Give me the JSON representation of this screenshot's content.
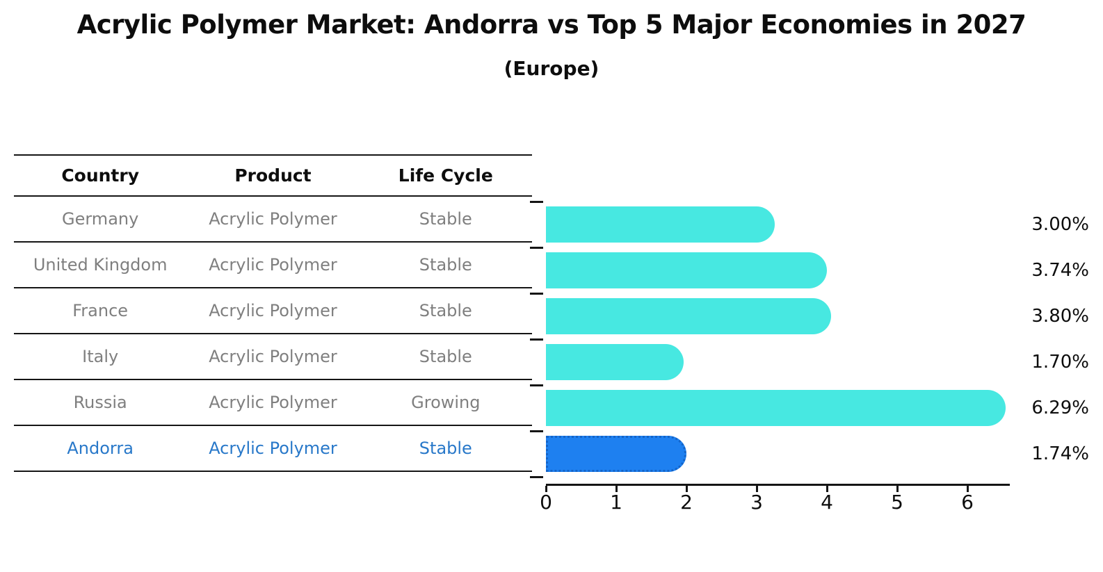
{
  "title": "Acrylic Polymer Market: Andorra vs Top 5 Major Economies in 2027",
  "subtitle": "(Europe)",
  "table": {
    "headers": {
      "country": "Country",
      "product": "Product",
      "life_cycle": "Life Cycle"
    },
    "rows": [
      {
        "country": "Germany",
        "product": "Acrylic Polymer",
        "life_cycle": "Stable"
      },
      {
        "country": "United Kingdom",
        "product": "Acrylic Polymer",
        "life_cycle": "Stable"
      },
      {
        "country": "France",
        "product": "Acrylic Polymer",
        "life_cycle": "Stable"
      },
      {
        "country": "Italy",
        "product": "Acrylic Polymer",
        "life_cycle": "Stable"
      },
      {
        "country": "Russia",
        "product": "Acrylic Polymer",
        "life_cycle": "Growing"
      },
      {
        "country": "Andorra",
        "product": "Acrylic Polymer",
        "life_cycle": "Stable"
      }
    ]
  },
  "chart_data": {
    "type": "bar",
    "orientation": "horizontal",
    "title": "Acrylic Polymer Market: Andorra vs Top 5 Major Economies in 2027",
    "subtitle": "(Europe)",
    "categories": [
      "Germany",
      "United Kingdom",
      "France",
      "Italy",
      "Russia",
      "Andorra"
    ],
    "values": [
      3.0,
      3.74,
      3.8,
      1.7,
      6.29,
      1.74
    ],
    "value_labels": [
      "3.00%",
      "3.74%",
      "3.80%",
      "1.70%",
      "6.29%",
      "1.74%"
    ],
    "unit": "%",
    "x_ticks": [
      "0",
      "1",
      "2",
      "3",
      "4",
      "5",
      "6"
    ],
    "xlim": [
      0,
      6.6
    ],
    "grid": false,
    "legend": false,
    "highlight_index": 5,
    "bar_color": "#47E8E1",
    "highlight_bar_color": "#1E80F0",
    "highlight_border_color": "#1464C8",
    "highlight_text_color": "#2878C9",
    "table_text_color": "#7f7f7f",
    "axis_color": "#151515"
  }
}
